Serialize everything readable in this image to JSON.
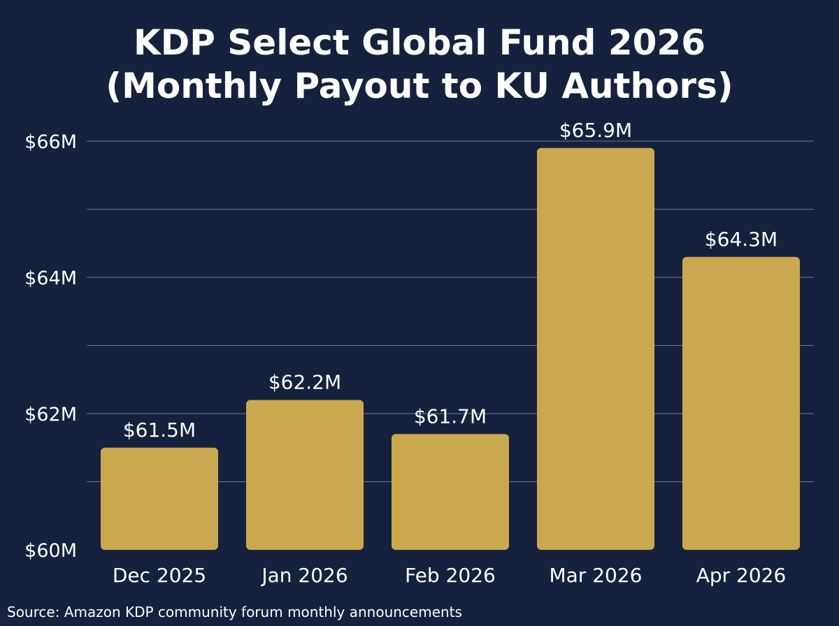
{
  "chart_data": {
    "type": "bar",
    "title_lines": [
      "KDP Select Global Fund 2026",
      "(Monthly Payout to KU Authors)"
    ],
    "categories": [
      "Dec 2025",
      "Jan 2026",
      "Feb 2026",
      "Mar 2026",
      "Apr 2026"
    ],
    "values": [
      61.5,
      62.2,
      61.7,
      65.9,
      64.3
    ],
    "value_labels": [
      "$61.5M",
      "$62.2M",
      "$61.7M",
      "$65.9M",
      "$64.3M"
    ],
    "ylim": [
      60,
      66
    ],
    "y_ticks": [
      60,
      62,
      64,
      66
    ],
    "y_tick_labels": [
      "$60M",
      "$62M",
      "$64M",
      "$66M"
    ],
    "grid_values": [
      61,
      62,
      63,
      64,
      65,
      66
    ],
    "grid": true,
    "xlabel": "",
    "ylabel": "",
    "source": "Source: Amazon KDP community forum monthly announcements"
  },
  "colors": {
    "background": "#16213d",
    "bar": "#c9a84f",
    "grid": "#6b7794",
    "text": "#ffffff"
  }
}
